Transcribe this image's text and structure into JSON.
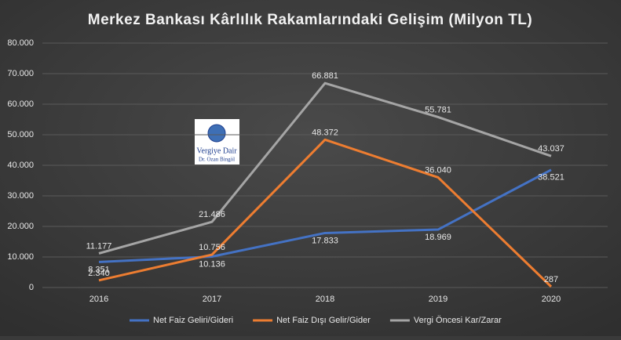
{
  "chart_data": {
    "type": "line",
    "title": "Merkez Bankası Kârlılık Rakamlarındaki Gelişim (Milyon TL)",
    "categories": [
      "2016",
      "2017",
      "2018",
      "2019",
      "2020"
    ],
    "series": [
      {
        "name": "Net Faiz Geliri/Gideri",
        "color": "#4472c4",
        "values": [
          8351,
          10136,
          17833,
          18969,
          38521
        ],
        "value_labels": [
          "8.351",
          "10.136",
          "17.833",
          "18.969",
          "38.521"
        ]
      },
      {
        "name": "Net Faiz Dışı Gelir/Gider",
        "color": "#ed7d31",
        "values": [
          2340,
          10756,
          48372,
          36040,
          287
        ],
        "value_labels": [
          "2.340",
          "10.756",
          "48.372",
          "36.040",
          "287"
        ]
      },
      {
        "name": "Vergi Öncesi Kar/Zarar",
        "color": "#a5a5a5",
        "values": [
          11177,
          21486,
          66881,
          55781,
          43037
        ],
        "value_labels": [
          "11.177",
          "21.486",
          "66.881",
          "55.781",
          "43.037"
        ]
      }
    ],
    "ylim": [
      0,
      80000
    ],
    "yticks": [
      0,
      {
        "value": 10000,
        "label": "10.000"
      },
      {
        "value": 20000,
        "label": "20.000"
      },
      {
        "value": 30000,
        "label": "30.000"
      },
      {
        "value": 40000,
        "label": "40.000"
      },
      {
        "value": 50000,
        "label": "50.000"
      },
      {
        "value": 60000,
        "label": "60.000"
      },
      {
        "value": 70000,
        "label": "70.000"
      },
      {
        "value": 80000,
        "label": "80.000"
      }
    ],
    "grid": true,
    "legend": "bottom"
  },
  "logo": {
    "line1": "Vergiye Dair",
    "line2": "Dr. Ozan Bingöl"
  }
}
